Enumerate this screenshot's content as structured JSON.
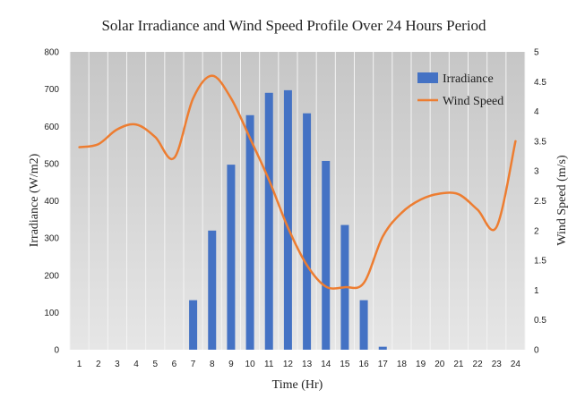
{
  "chart_data": {
    "type": "bar+line",
    "title": "Solar Irradiance and Wind Speed Profile  Over 24 Hours Period",
    "xlabel": "Time (Hr)",
    "ylabel": "Irradiance (W/m2)",
    "y2label": "Wind Speed (m/s)",
    "x": [
      1,
      2,
      3,
      4,
      5,
      6,
      7,
      8,
      9,
      10,
      11,
      12,
      13,
      14,
      15,
      16,
      17,
      18,
      19,
      20,
      21,
      22,
      23,
      24
    ],
    "x_ticks": [
      "1",
      "2",
      "3",
      "4",
      "5",
      "6",
      "7",
      "8",
      "9",
      "10",
      "11",
      "12",
      "13",
      "14",
      "15",
      "16",
      "17",
      "18",
      "19",
      "20",
      "21",
      "22",
      "23",
      "24"
    ],
    "ylim": [
      0,
      800
    ],
    "y_ticks": [
      "0",
      "100",
      "200",
      "300",
      "400",
      "500",
      "600",
      "700",
      "800"
    ],
    "y2lim": [
      0,
      5
    ],
    "y2_ticks": [
      "0",
      "0.5",
      "1",
      "1.5",
      "2",
      "2.5",
      "3",
      "3.5",
      "4",
      "4.5",
      "5"
    ],
    "series": [
      {
        "name": "Irradiance",
        "type": "bar",
        "axis": "left",
        "color": "#4472C4",
        "values": [
          0,
          0,
          0,
          0,
          0,
          0,
          133,
          320,
          497,
          630,
          690,
          697,
          635,
          507,
          335,
          133,
          8,
          0,
          0,
          0,
          0,
          0,
          0,
          0
        ]
      },
      {
        "name": "Wind Speed",
        "type": "line",
        "axis": "right",
        "color": "#ED7D31",
        "values": [
          3.4,
          3.45,
          3.7,
          3.78,
          3.57,
          3.22,
          4.22,
          4.6,
          4.22,
          3.55,
          2.85,
          2.05,
          1.42,
          1.06,
          1.05,
          1.12,
          1.9,
          2.3,
          2.52,
          2.62,
          2.61,
          2.35,
          2.06,
          3.5
        ]
      }
    ],
    "legend": "top-right",
    "grid": true
  }
}
